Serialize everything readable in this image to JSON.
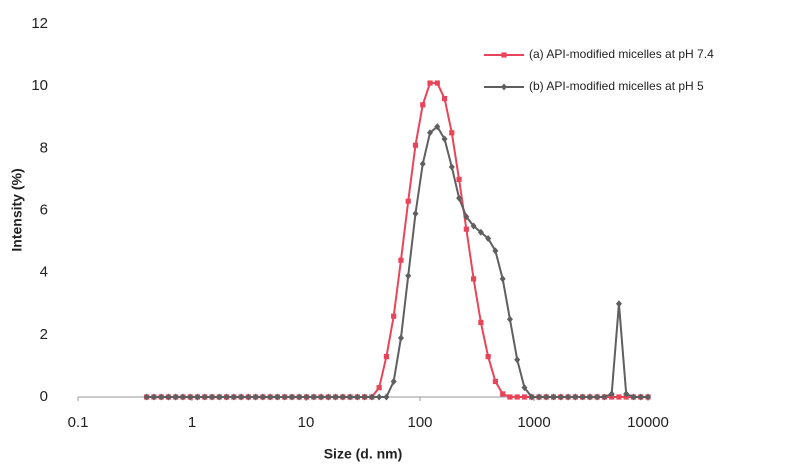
{
  "chart_data": {
    "type": "line",
    "xlabel": "Size (d. nm)",
    "ylabel": "Intensity (%)",
    "xscale": "log",
    "xlim": [
      0.1,
      10000
    ],
    "xticks": [
      0.1,
      1,
      10,
      100,
      1000,
      10000
    ],
    "ylim": [
      0,
      12
    ],
    "yticks": [
      0,
      2,
      4,
      6,
      8,
      10,
      12
    ],
    "legend": "upper right",
    "x": [
      0.4,
      0.4632,
      0.5365,
      0.6213,
      0.7195,
      0.8332,
      0.9649,
      1.117,
      1.294,
      1.499,
      1.736,
      2.01,
      2.328,
      2.696,
      3.122,
      3.615,
      4.187,
      4.849,
      5.615,
      6.503,
      7.531,
      8.721,
      10.1,
      11.7,
      13.54,
      15.69,
      18.17,
      21.04,
      24.36,
      28.21,
      32.67,
      37.84,
      43.82,
      50.75,
      58.77,
      68.06,
      78.82,
      91.28,
      105.7,
      122.4,
      141.8,
      164.2,
      190.1,
      220.2,
      255,
      295.3,
      342,
      396.1,
      458.7,
      531.2,
      615.1,
      712.4,
      825,
      955.4,
      1106,
      1281,
      1484,
      1718,
      1990,
      2305,
      2669,
      3091,
      3580,
      4145,
      4801,
      5560,
      6439,
      7456,
      8635,
      10000
    ],
    "series": [
      {
        "name": "(a) API-modified micelles at pH 7.4",
        "color": "#e8455a",
        "marker": "square",
        "values": [
          0,
          0,
          0,
          0,
          0,
          0,
          0,
          0,
          0,
          0,
          0,
          0,
          0,
          0,
          0,
          0,
          0,
          0,
          0,
          0,
          0,
          0,
          0,
          0,
          0,
          0,
          0,
          0,
          0,
          0,
          0,
          0,
          0.3,
          1.3,
          2.6,
          4.4,
          6.3,
          8.1,
          9.4,
          10.1,
          10.1,
          9.6,
          8.5,
          7.0,
          5.4,
          3.8,
          2.4,
          1.3,
          0.5,
          0.1,
          0,
          0,
          0,
          0,
          0,
          0,
          0,
          0,
          0,
          0,
          0,
          0,
          0,
          0,
          0,
          0,
          0,
          0,
          0,
          0
        ]
      },
      {
        "name": "(b) API-modified micelles at pH 5",
        "color": "#5f5f5f",
        "marker": "diamond",
        "values": [
          0,
          0,
          0,
          0,
          0,
          0,
          0,
          0,
          0,
          0,
          0,
          0,
          0,
          0,
          0,
          0,
          0,
          0,
          0,
          0,
          0,
          0,
          0,
          0,
          0,
          0,
          0,
          0,
          0,
          0,
          0,
          0,
          0,
          0,
          0.5,
          1.9,
          3.9,
          5.9,
          7.5,
          8.5,
          8.7,
          8.3,
          7.4,
          6.4,
          5.8,
          5.5,
          5.3,
          5.1,
          4.7,
          3.8,
          2.5,
          1.2,
          0.3,
          0,
          0,
          0,
          0,
          0,
          0,
          0,
          0,
          0,
          0,
          0,
          0.1,
          3.0,
          0.1,
          0,
          0,
          0
        ]
      }
    ]
  }
}
